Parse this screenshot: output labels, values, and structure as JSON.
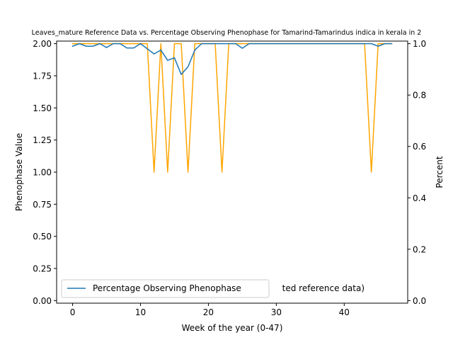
{
  "chart_data": {
    "type": "line",
    "title": "Leaves_mature Reference Data vs. Percentage Observing Phenophase for Tamarind-Tamarindus indica in kerala in 2",
    "xlabel": "Week of the year (0-47)",
    "ylabel_left": "Phenophase Value",
    "ylabel_right": "Percent",
    "xlim": [
      -2.35,
      49.35
    ],
    "ylim_left": [
      -0.02,
      2.02
    ],
    "ylim_right": [
      -0.01,
      1.01
    ],
    "x_ticks": [
      0,
      10,
      20,
      30,
      40
    ],
    "x_tick_labels": [
      "0",
      "10",
      "20",
      "30",
      "40"
    ],
    "y_left_ticks": [
      0,
      0.25,
      0.5,
      0.75,
      1.0,
      1.25,
      1.5,
      1.75,
      2.0
    ],
    "y_left_tick_labels": [
      "0.00",
      "0.25",
      "0.50",
      "0.75",
      "1.00",
      "1.25",
      "1.50",
      "1.75",
      "2.00"
    ],
    "y_right_ticks": [
      0,
      0.2,
      0.4,
      0.6,
      0.8,
      1.0
    ],
    "y_right_tick_labels": [
      "0.0",
      "0.2",
      "0.4",
      "0.6",
      "0.8",
      "1.0"
    ],
    "grid": false,
    "legend_position": "lower-left",
    "series": [
      {
        "name": "",
        "axis": "left",
        "color": "#FFA500",
        "x": [
          0,
          1,
          2,
          3,
          4,
          5,
          6,
          7,
          8,
          9,
          10,
          11,
          12,
          13,
          14,
          15,
          16,
          17,
          18,
          19,
          20,
          21,
          22,
          23,
          24,
          25,
          26,
          27,
          28,
          29,
          30,
          31,
          32,
          33,
          34,
          35,
          36,
          37,
          38,
          39,
          40,
          41,
          42,
          43,
          44,
          45,
          46,
          47
        ],
        "values": [
          2,
          2,
          2,
          2,
          2,
          2,
          2,
          2,
          2,
          2,
          2,
          2,
          1,
          2,
          1,
          2,
          2,
          1,
          2,
          2,
          2,
          2,
          1,
          2,
          2,
          2,
          2,
          2,
          2,
          2,
          2,
          2,
          2,
          2,
          2,
          2,
          2,
          2,
          2,
          2,
          2,
          2,
          2,
          2,
          1,
          2,
          2,
          2
        ]
      },
      {
        "name": "Percentage Observing Phenophase",
        "axis": "right",
        "color": "#1F77B4",
        "x": [
          0,
          1,
          2,
          3,
          4,
          5,
          6,
          7,
          8,
          9,
          10,
          11,
          12,
          13,
          14,
          15,
          16,
          17,
          18,
          19,
          20,
          21,
          22,
          23,
          24,
          25,
          26,
          27,
          28,
          29,
          30,
          31,
          32,
          33,
          34,
          35,
          36,
          37,
          38,
          39,
          40,
          41,
          42,
          43,
          44,
          45,
          46,
          47
        ],
        "values": [
          0.99,
          1.0,
          0.99,
          0.99,
          1.0,
          0.985,
          1.0,
          1.0,
          0.983,
          0.983,
          1.0,
          0.98,
          0.96,
          0.975,
          0.935,
          0.945,
          0.88,
          0.91,
          0.975,
          1.0,
          1.0,
          1.0,
          1.0,
          1.0,
          1.0,
          0.982,
          1.0,
          1.0,
          1.0,
          1.0,
          1.0,
          1.0,
          1.0,
          1.0,
          1.0,
          1.0,
          1.0,
          1.0,
          1.0,
          1.0,
          1.0,
          1.0,
          1.0,
          1.0,
          1.0,
          0.99,
          1.0,
          1.0
        ]
      }
    ],
    "legend": {
      "entries": [
        {
          "label": "Percentage Observing Phenophase",
          "color": "#1F77B4"
        }
      ],
      "occluded_text": "ted reference data)"
    }
  }
}
